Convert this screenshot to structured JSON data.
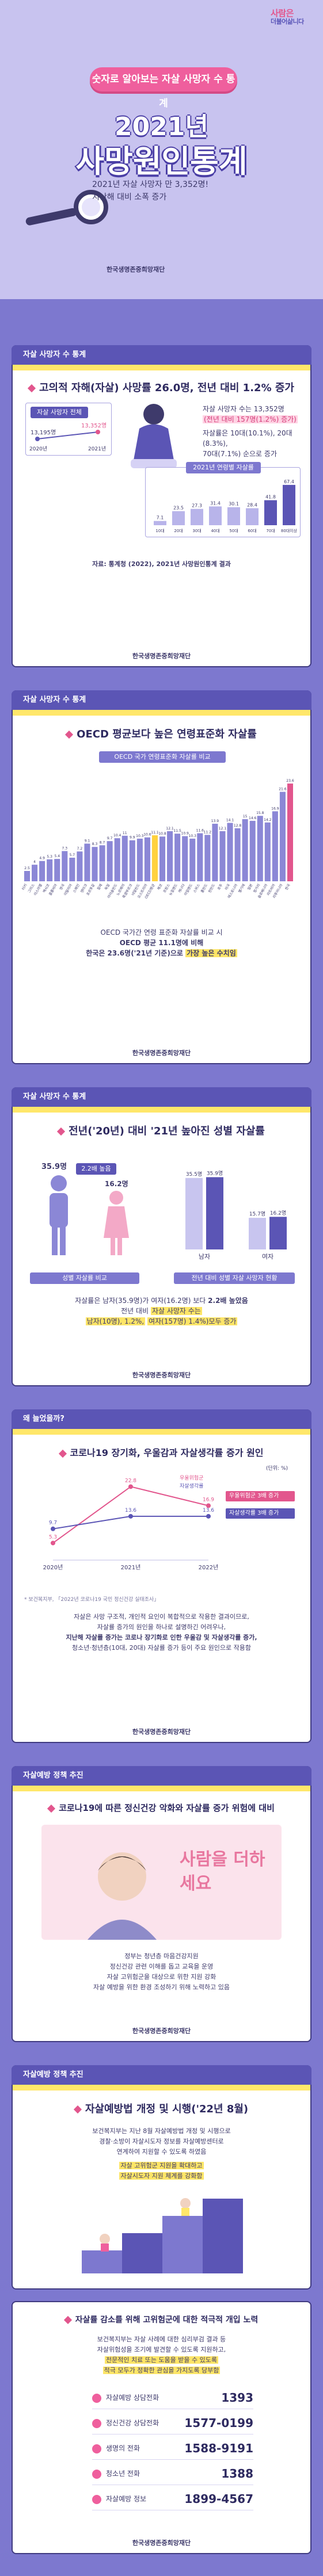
{
  "brand": {
    "main": "사람은",
    "sub": "더불어삶니다"
  },
  "hero": {
    "pill": "숫자로 알아보는 자살 사망자 수 통계",
    "year": "2021년",
    "title": "사망원인통계",
    "desc_line1": "2021년 자살 사망자 만 3,352명!",
    "desc_line2": "지난해 대비 소폭 증가",
    "org": "한국생명존중희망재단"
  },
  "section1": {
    "header": "자살 사망자 수 통계",
    "title": "고의적 자해(자살) 사망률 26.0명, 전년 대비 1.2% 증가",
    "left_label": "자살 사망자 전체",
    "left_values": [
      "13,195명",
      "13,352명"
    ],
    "left_years": [
      "2020년",
      "2021년"
    ],
    "bullet1": "자살 사망자 수는 13,352명",
    "bullet1b": "(전년 대비 157명(1.2%) 증가)",
    "bullet2": "자살률은 10대(10.1%), 20대(8.3%),",
    "bullet2b": "70대(7.1%) 순으로 증가",
    "chart_title": "2021년 연령별 자살률",
    "chart_data": {
      "type": "bar",
      "categories": [
        "10대",
        "20대",
        "30대",
        "40대",
        "50대",
        "60대",
        "70대",
        "80대이상"
      ],
      "values": [
        7.1,
        23.5,
        27.3,
        31.4,
        30.1,
        28.4,
        41.8,
        67.4
      ]
    },
    "note": "자료: 통계청 (2022), 2021년 사망원인통계 결과"
  },
  "section2": {
    "header": "자살 사망자 수 통계",
    "title": "OECD 평균보다 높은 연령표준화 자살률",
    "chart_title": "OECD 국가 연령표준화 자살률 비교",
    "chart_data": {
      "type": "bar",
      "categories": [
        "터키",
        "그리스",
        "이스라엘",
        "멕시코",
        "콜롬비아",
        "영국",
        "이탈리아",
        "스페인",
        "덴마크",
        "포르투갈",
        "칠레",
        "독일",
        "아이슬란드",
        "노르웨이",
        "룩셈부르크",
        "네덜란드",
        "오스트리아",
        "OECD평균",
        "체코",
        "프랑스",
        "뉴질랜드",
        "캐나다",
        "아일랜드",
        "스위스",
        "폴란드",
        "핀란드",
        "호주",
        "미국",
        "에스토니아",
        "벨기에",
        "일본",
        "헝가리",
        "슬로베니아",
        "라트비아",
        "리투아니아",
        "한국"
      ],
      "values": [
        2.5,
        4.0,
        4.9,
        5.3,
        5.4,
        7.3,
        5.7,
        7.2,
        9.1,
        8.3,
        8.7,
        9.7,
        10.4,
        11.0,
        9.9,
        10.3,
        10.6,
        11.1,
        10.8,
        12.1,
        11.5,
        10.9,
        10.3,
        11.6,
        11.2,
        13.9,
        12.1,
        14.1,
        12.8,
        15.0,
        14.6,
        15.8,
        14.2,
        16.9,
        21.6,
        23.6
      ]
    },
    "line1": "OECD 국가간 연령 표준화 자살률 비교 시",
    "line2": "OECD 평균 11.1명에 비해",
    "line3a": "한국은 23.6명('21년 기준)으로",
    "line3b": "가장 높은 수치임"
  },
  "section3": {
    "header": "자살 사망자 수 통계",
    "title": "전년('20년) 대비 '21년 높아진 성별 자살률",
    "male_value": "35.9명",
    "female_badge": "2.2배 높음",
    "female_value": "16.2명",
    "left_caption": "성별 자살률 비교",
    "bars": {
      "male": {
        "v2020": "35.5명",
        "v2021": "35.9명"
      },
      "female": {
        "v2020": "15.7명",
        "v2021": "16.2명"
      }
    },
    "gender_labels": [
      "남자",
      "여자"
    ],
    "right_caption": "전년 대비 성별 자살 사망자 현황",
    "sum1": "자살률은 남자(35.9명)가 여자(16.2명) 보다",
    "sum1b": "2.2배 높았음",
    "sum2": "전년 대비",
    "sum2b": "자살 사망자 수는",
    "sum3": "남자(10명), 1.2%,",
    "sum3b": "여자(157명) 1.4%)모두 증가"
  },
  "section4": {
    "header": "왜 늘었을까?",
    "title": "코로나19 장기화, 우울감과 자살생각률 증가 원인",
    "unit": "(단위: %)",
    "chart_data": {
      "type": "line",
      "x": [
        "2020년",
        "2021년",
        "2022년"
      ],
      "series": [
        {
          "name": "우울위험군",
          "values": [
            5.3,
            22.8,
            16.9
          ]
        },
        {
          "name": "자살생각률",
          "values": [
            9.7,
            13.6,
            13.6
          ]
        }
      ]
    },
    "callout1": "우울위험군 3배 증가",
    "callout2": "자살생각률 3배 증가",
    "note": "* 보건복지부, 「2022년 코로나19 국민 정신건강 실태조사」",
    "p1": "자살은 사망 구조적, 개인적 요인이 복합적으로 작용한 결과이므로,",
    "p2": "자살률 증가의 원인을 하나로 설명하긴 어려우나,",
    "p3": "지난해 자살률 증가는 코로나 장기화로 인한 우울감 및 자살생각률 증가,",
    "p4": "청소년·청년층(10대, 20대) 자살률 증가 등이 주요 원인으로 작용함"
  },
  "section5": {
    "header": "자살예방 정책 추진",
    "title": "코로나19에 따른 정신건강 악화와 자살률 증가 위험에 대비",
    "art_text": "사람을 더하세요",
    "p1": "정부는 청년층 마음건강지원",
    "p2": "정신건강 관련 이해를 돕고 교육을 운영",
    "p3": "자살 고위험군을 대상으로 위한 지원 강화",
    "p4": "자살 예방을 위한 환경 조성하기 위해 노력하고 있음"
  },
  "section6": {
    "header": "자살예방 정책 추진",
    "title": "자살예방법 개정 및 시행('22년 8월)",
    "p1": "보건복지부는 지난 8월 자살예방법 개정 및 시행으로",
    "p2": "경찰·소방이 자살시도자 정보를 자살예방센터로",
    "p3": "연계하여 지원할 수 있도록 하였음",
    "hl1": "자살 고위험군 지원을 확대하고",
    "hl2": "자살시도자 지원 체계를 강화함"
  },
  "section7": {
    "title": "자살률 감소를 위해 고위험군에 대한 적극적 개입 노력",
    "p1": "보건복지부는 자살 사례에 대한 심리부검 결과 등",
    "p2": "자살위험성을 조기에 발견할 수 있도록 지원하고,",
    "hl1": "전문적인 치료 또는 도움을 받을 수 있도록",
    "hl2": "적극 모두가 정확한 관심을 가지도록 당부함",
    "hotlines": [
      {
        "label": "자살예방 상담전화",
        "number": "1393"
      },
      {
        "label": "정신건강 상담전화",
        "number": "1577-0199"
      },
      {
        "label": "생명의 전화",
        "number": "1588-9191"
      },
      {
        "label": "청소년 전화",
        "number": "1388"
      },
      {
        "label": "자살예방 정보",
        "number": "1899-4567"
      }
    ]
  },
  "footer_org": "한국생명존중희망재단"
}
